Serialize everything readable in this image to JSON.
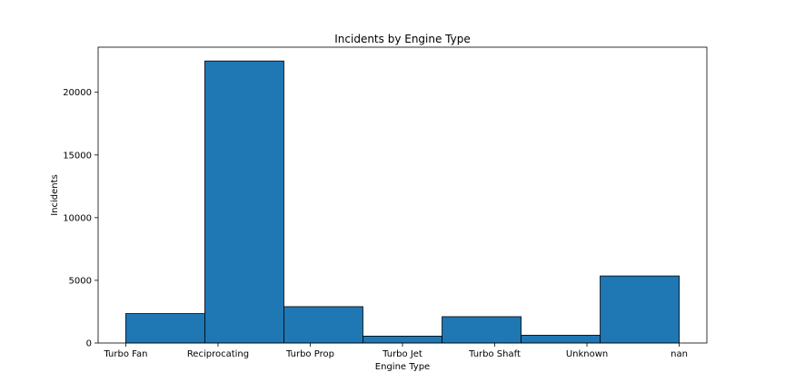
{
  "chart_data": {
    "type": "bar",
    "title": "Incidents by Engine Type",
    "xlabel": "Engine Type",
    "ylabel": "Incidents",
    "tick_labels": [
      "Turbo Fan",
      "Reciprocating",
      "Turbo Prop",
      "Turbo Jet",
      "Turbo Shaft",
      "Unknown",
      "nan"
    ],
    "bars": [
      {
        "x_start": 0,
        "x_end": 0.857,
        "value": 2350
      },
      {
        "x_start": 0.857,
        "x_end": 1.714,
        "value": 22500
      },
      {
        "x_start": 1.714,
        "x_end": 2.571,
        "value": 2900
      },
      {
        "x_start": 2.571,
        "x_end": 3.429,
        "value": 550
      },
      {
        "x_start": 3.429,
        "x_end": 4.286,
        "value": 2100
      },
      {
        "x_start": 4.286,
        "x_end": 5.143,
        "value": 620
      },
      {
        "x_start": 5.143,
        "x_end": 6.0,
        "value": 5350
      }
    ],
    "xlim": [
      -0.3,
      6.3
    ],
    "ylim": [
      0,
      23600
    ],
    "yticks": [
      0,
      5000,
      10000,
      15000,
      20000
    ],
    "bar_color": "#1f77b4",
    "edge_color": "#000000",
    "grid": false,
    "legend": "none"
  }
}
